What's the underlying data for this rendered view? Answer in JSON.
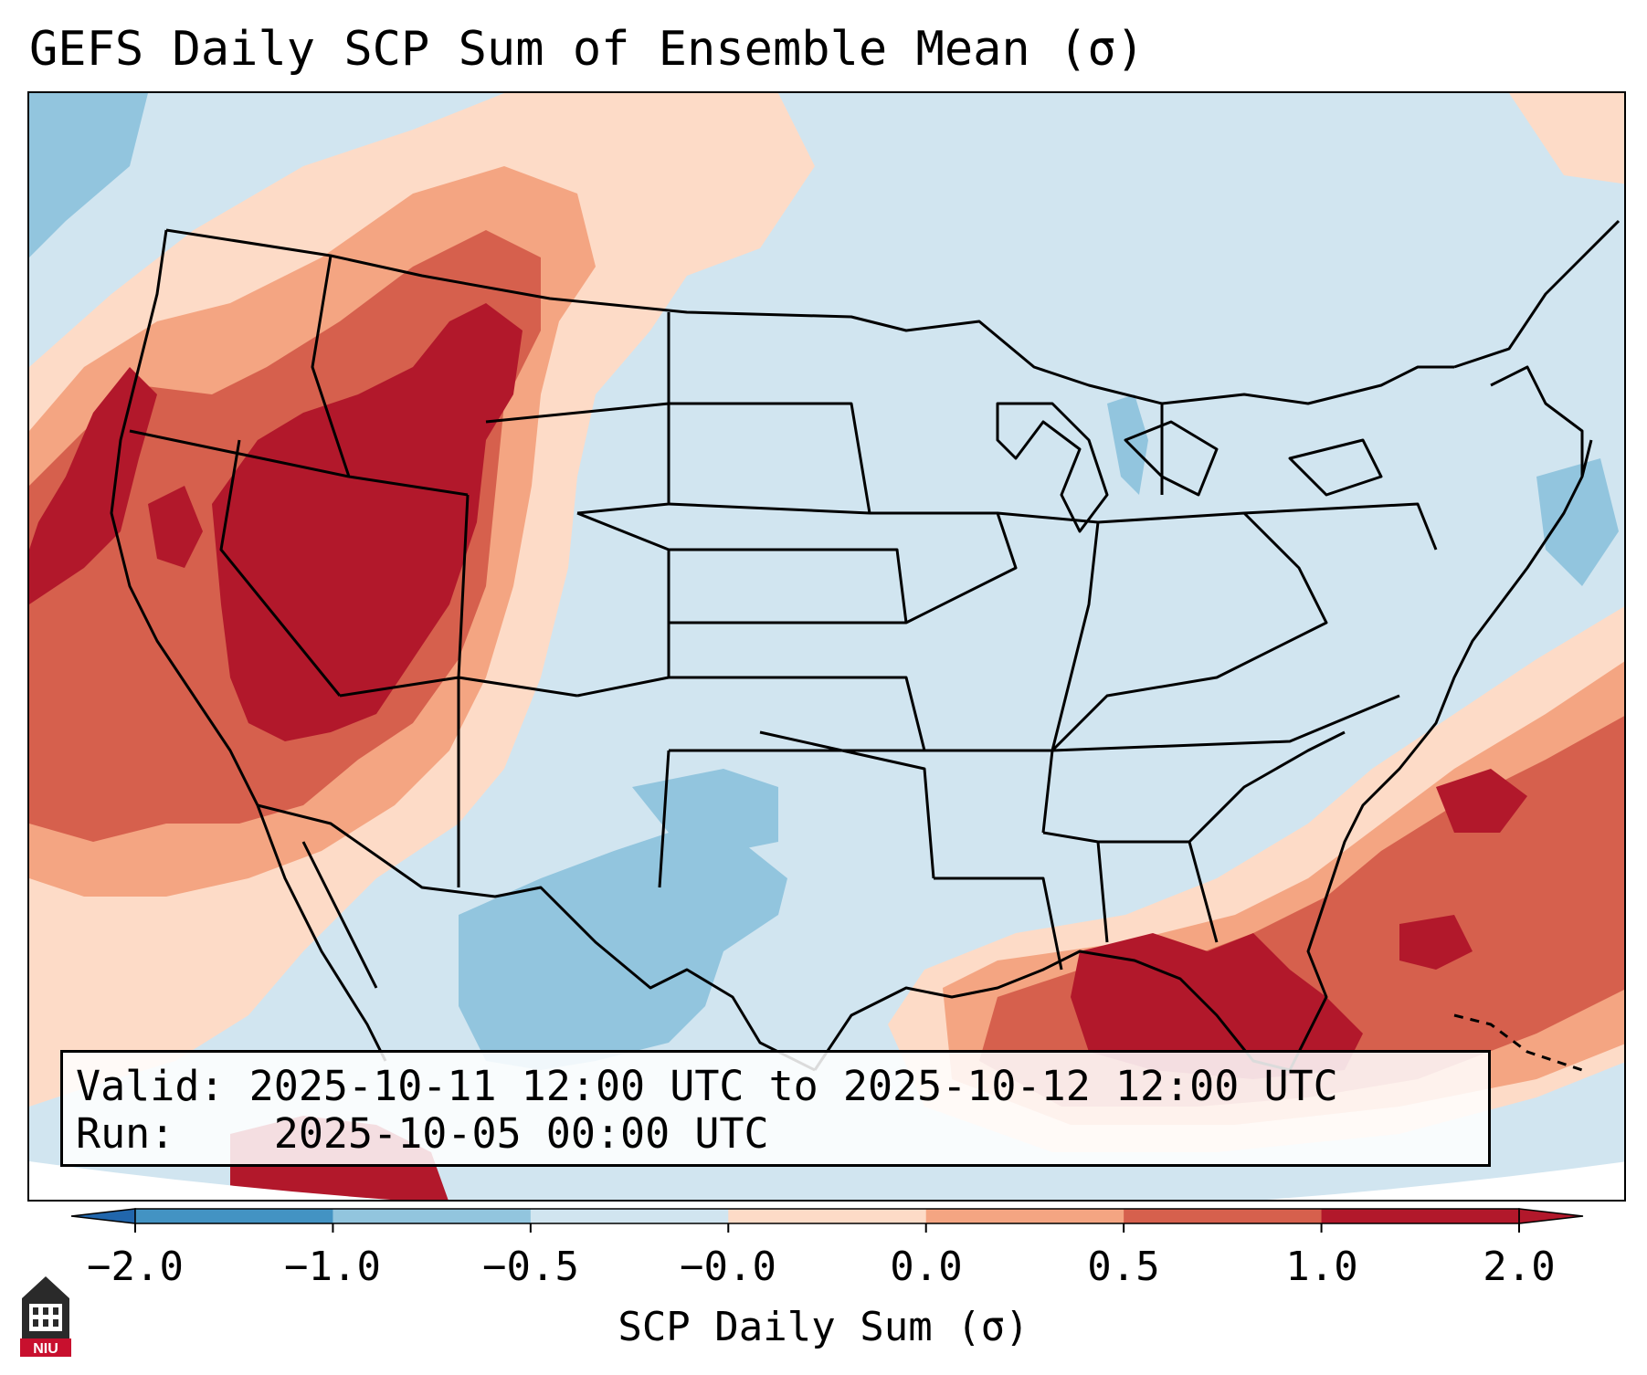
{
  "title": "GEFS Daily SCP Sum of Ensemble Mean (σ)",
  "info": {
    "valid_label": "Valid:",
    "valid_value": "2025-10-11 12:00 UTC to 2025-10-12 12:00 UTC",
    "run_label": "Run:",
    "run_value": "2025-10-05 00:00 UTC"
  },
  "colorbar": {
    "label": "SCP Daily Sum (σ)",
    "ticks": [
      "−2.0",
      "−1.0",
      "−0.5",
      "−0.0",
      "0.0",
      "0.5",
      "1.0",
      "2.0"
    ],
    "colors": [
      "#4393c3",
      "#92c5de",
      "#d1e5f0",
      "#fddbc7",
      "#f4a582",
      "#d6604d",
      "#b2182b"
    ],
    "under_color": "#2166ac",
    "over_color": "#b2182b"
  },
  "map_fill": {
    "background": "#d1e5f0",
    "light_red": "#fddbc7",
    "medium_red": "#f4a582",
    "red": "#d6604d",
    "dark_red": "#b2182b",
    "light_blue": "#92c5de"
  },
  "logo": {
    "text": "NIU"
  }
}
